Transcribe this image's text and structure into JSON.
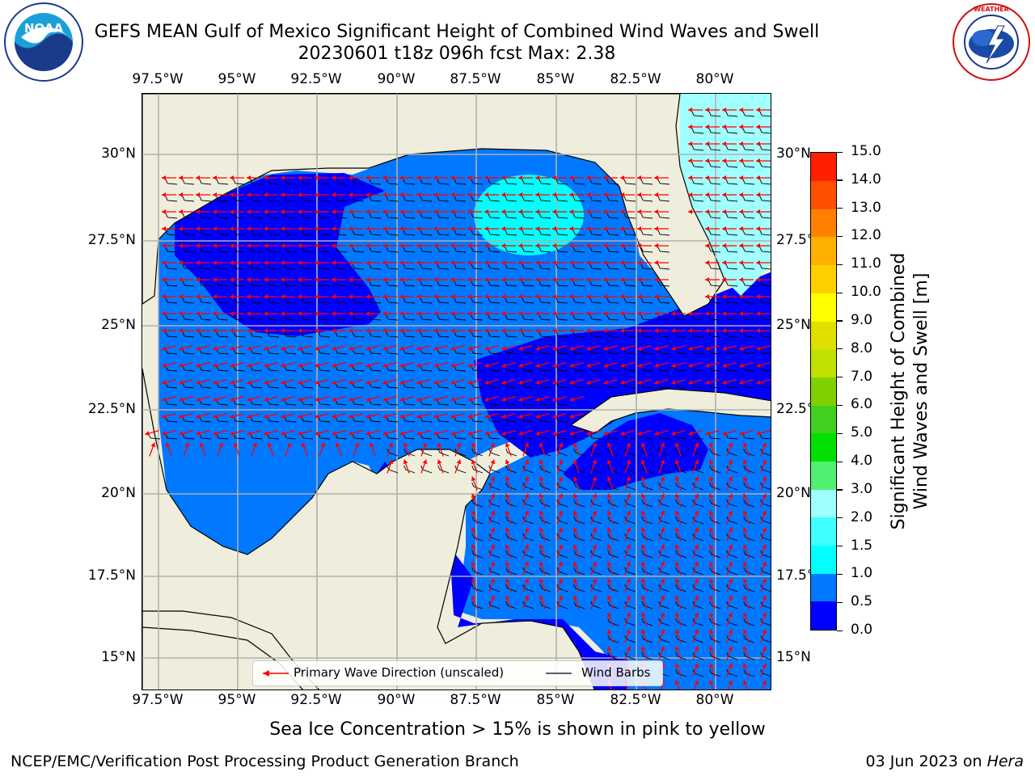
{
  "title": {
    "line1": "GEFS MEAN Gulf of Mexico Significant Height of Combined Wind Waves and Swell",
    "line2": "20230601 t18z 096h fcst   Max: 2.38"
  },
  "logos": {
    "noaa_text": "NOAA",
    "noaa_ring": "NATIONAL OCEANIC AND ATMOSPHERIC ADMINISTRATION · U.S. DEPARTMENT OF COMMERCE",
    "nws_ring": "NATIONAL WEATHER SERVICE"
  },
  "map": {
    "lon_labels": [
      "97.5°W",
      "95°W",
      "92.5°W",
      "90°W",
      "87.5°W",
      "85°W",
      "82.5°W",
      "80°W"
    ],
    "lat_labels": [
      "30°N",
      "27.5°N",
      "25°N",
      "22.5°N",
      "20°N",
      "17.5°N",
      "15°N"
    ],
    "extent": {
      "lon_min": -98,
      "lon_max": -78.2,
      "lat_min": 14,
      "lat_max": 31.6
    },
    "land_color": "#efeedc",
    "grid_color": "#b0b0b0"
  },
  "legend": {
    "wave_direction": "Primary Wave Direction (unscaled)",
    "wind_barbs": "Wind Barbs",
    "wave_color": "#ff0000",
    "barb_color": "#000000"
  },
  "colorbar": {
    "label_line1": "Significant Height of Combined",
    "label_line2": "Wind Waves and Swell [m]",
    "ticks": [
      "0.0",
      "0.5",
      "1.0",
      "1.5",
      "2.0",
      "3.0",
      "4.0",
      "5.0",
      "6.0",
      "7.0",
      "8.0",
      "9.0",
      "10.0",
      "11.0",
      "12.0",
      "13.0",
      "14.0",
      "15.0"
    ],
    "colors": [
      "#0000ff",
      "#0078ff",
      "#00ffff",
      "#40ffff",
      "#a0ffff",
      "#50f070",
      "#00e000",
      "#40d020",
      "#80d000",
      "#c0e000",
      "#e0e000",
      "#ffff00",
      "#ffd000",
      "#ffb000",
      "#ff8000",
      "#ff5000",
      "#ff2000"
    ]
  },
  "sea_ice_note": "Sea Ice Concentration > 15% is shown in pink to yellow",
  "footer": {
    "left": "NCEP/EMC/Verification Post Processing Product Generation Branch",
    "right_prefix": "03 Jun 2023 on ",
    "right_host": "Hera"
  }
}
